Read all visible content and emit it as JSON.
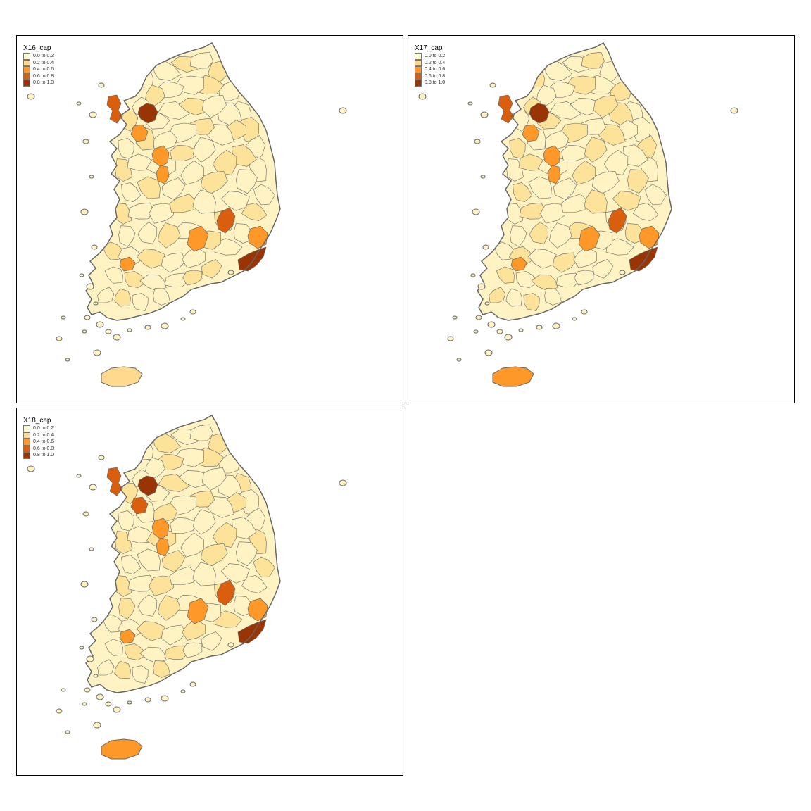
{
  "panels": [
    {
      "legend_title": "X16_cap",
      "highlights": [
        {
          "region": "seoul",
          "class": 4
        },
        {
          "region": "incheon",
          "class": 3
        },
        {
          "region": "gyeonggi-south",
          "class": 2
        },
        {
          "region": "daejeon",
          "class": 2
        },
        {
          "region": "cheongju",
          "class": 2
        },
        {
          "region": "daegu",
          "class": 3
        },
        {
          "region": "gwangju",
          "class": 2
        },
        {
          "region": "ulsan",
          "class": 2
        },
        {
          "region": "busan",
          "class": 4
        },
        {
          "region": "changwon",
          "class": 2
        },
        {
          "region": "jeju",
          "class": 1
        }
      ]
    },
    {
      "legend_title": "X17_cap",
      "highlights": [
        {
          "region": "seoul",
          "class": 4
        },
        {
          "region": "incheon",
          "class": 3
        },
        {
          "region": "gyeonggi-south",
          "class": 2
        },
        {
          "region": "daejeon",
          "class": 2
        },
        {
          "region": "cheongju",
          "class": 2
        },
        {
          "region": "daegu",
          "class": 3
        },
        {
          "region": "gwangju",
          "class": 2
        },
        {
          "region": "ulsan",
          "class": 2
        },
        {
          "region": "busan",
          "class": 4
        },
        {
          "region": "changwon",
          "class": 2
        },
        {
          "region": "jeju",
          "class": 2
        }
      ]
    },
    {
      "legend_title": "X18_cap",
      "highlights": [
        {
          "region": "seoul",
          "class": 4
        },
        {
          "region": "incheon",
          "class": 3
        },
        {
          "region": "gyeonggi-south",
          "class": 3
        },
        {
          "region": "daejeon",
          "class": 2
        },
        {
          "region": "cheongju",
          "class": 2
        },
        {
          "region": "daegu",
          "class": 3
        },
        {
          "region": "gwangju",
          "class": 2
        },
        {
          "region": "ulsan",
          "class": 2
        },
        {
          "region": "busan",
          "class": 4
        },
        {
          "region": "changwon",
          "class": 2
        },
        {
          "region": "jeju",
          "class": 2
        }
      ]
    }
  ],
  "legend": {
    "classes": [
      {
        "label": "0.0 to 0.2",
        "color": "#ffffd4"
      },
      {
        "label": "0.2 to 0.4",
        "color": "#fed98e"
      },
      {
        "label": "0.4 to 0.6",
        "color": "#fe9929"
      },
      {
        "label": "0.6 to 0.8",
        "color": "#d95f0e"
      },
      {
        "label": "0.8 to 1.0",
        "color": "#993404"
      }
    ]
  },
  "colors": {
    "base_light": "#fff3c4",
    "base_mid": "#fde29a",
    "border": "#666666"
  }
}
